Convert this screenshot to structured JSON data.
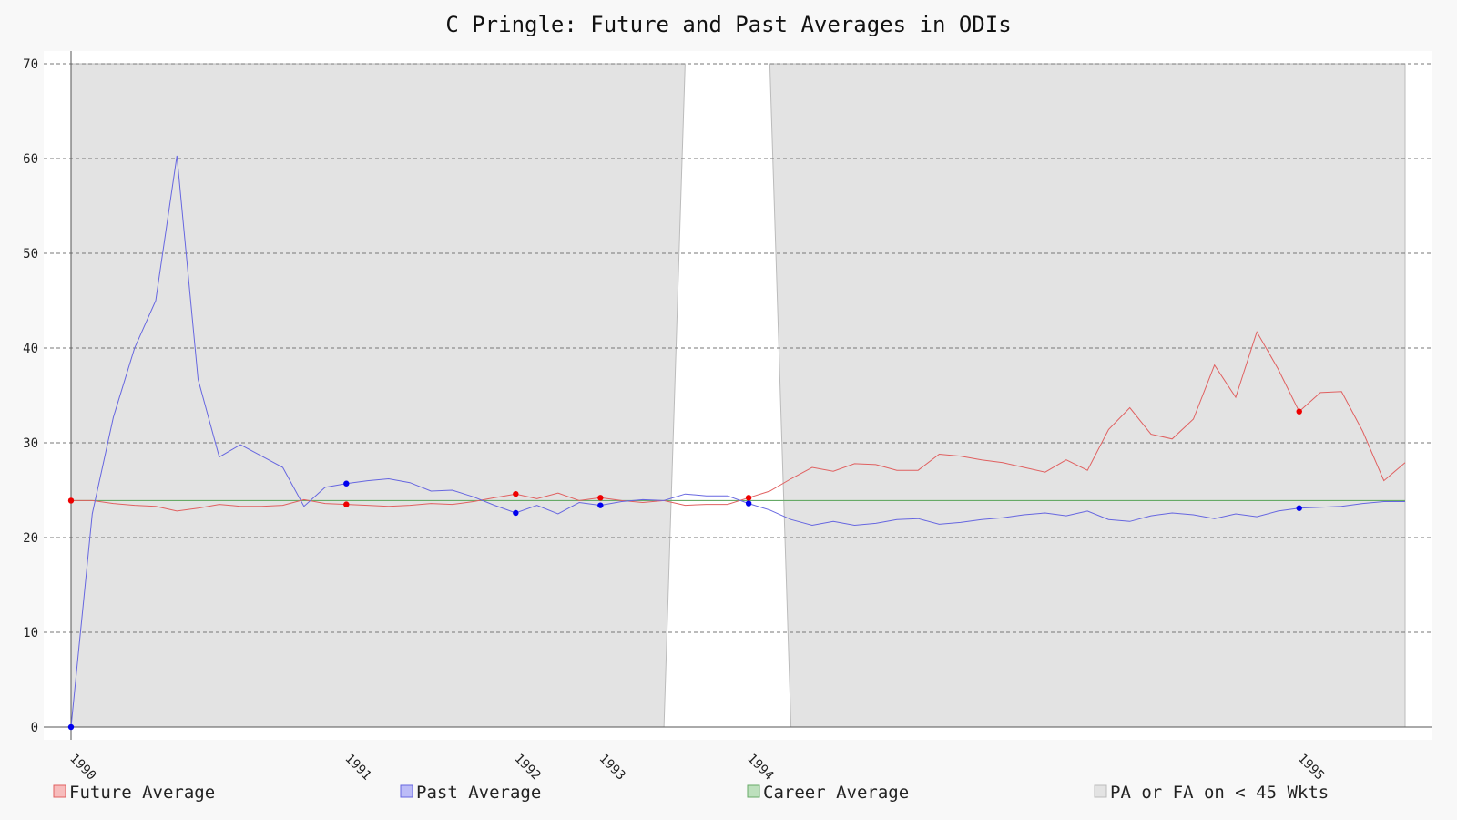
{
  "chart_data": {
    "type": "line",
    "title": "C Pringle: Future and Past Averages in ODIs",
    "xlabel": "",
    "ylabel": "",
    "ylim": [
      0,
      70
    ],
    "yticks": [
      0,
      10,
      20,
      30,
      40,
      50,
      60,
      70
    ],
    "grid": true,
    "legend_position": "bottom",
    "colors": {
      "future": "#e06060",
      "past": "#6666e0",
      "career": "#66aa66",
      "shade": "#e3e3e3",
      "plot_bg": "#ffffff",
      "marker_future": "#ee0000",
      "marker_past": "#0000ee"
    },
    "x_count": 64,
    "xticks": [
      {
        "index": 0,
        "label": "1990"
      },
      {
        "index": 13,
        "label": "1991"
      },
      {
        "index": 21,
        "label": "1992"
      },
      {
        "index": 25,
        "label": "1993"
      },
      {
        "index": 32,
        "label": "1994"
      },
      {
        "index": 58,
        "label": "1995"
      }
    ],
    "series": [
      {
        "name": "Future Average",
        "key": "future",
        "values": [
          23.9,
          23.9,
          23.6,
          23.4,
          23.3,
          22.8,
          23.1,
          23.5,
          23.3,
          23.3,
          23.4,
          24.0,
          23.6,
          23.5,
          23.4,
          23.3,
          23.4,
          23.6,
          23.5,
          23.8,
          24.2,
          24.6,
          24.1,
          24.7,
          23.9,
          24.2,
          23.9,
          23.7,
          23.9,
          23.4,
          23.5,
          23.5,
          24.2,
          24.9,
          26.2,
          27.4,
          27.0,
          27.8,
          27.7,
          27.1,
          27.1,
          28.8,
          28.6,
          28.2,
          27.9,
          27.4,
          26.9,
          28.2,
          27.1,
          31.4,
          33.7,
          30.9,
          30.4,
          32.5,
          38.2,
          34.8,
          41.7,
          37.8,
          33.3,
          35.3,
          35.4,
          31.2,
          26.0,
          27.9
        ],
        "markers": [
          0,
          13,
          21,
          25,
          32,
          58
        ]
      },
      {
        "name": "Past Average",
        "key": "past",
        "values": [
          0.0,
          22.5,
          32.7,
          40.0,
          45.0,
          60.3,
          36.7,
          28.5,
          29.8,
          28.6,
          27.4,
          23.3,
          25.3,
          25.7,
          26.0,
          26.2,
          25.8,
          24.9,
          25.0,
          24.3,
          23.4,
          22.6,
          23.4,
          22.5,
          23.7,
          23.4,
          23.8,
          24.0,
          23.9,
          24.6,
          24.4,
          24.4,
          23.6,
          22.9,
          21.9,
          21.3,
          21.7,
          21.3,
          21.5,
          21.9,
          22.0,
          21.4,
          21.6,
          21.9,
          22.1,
          22.4,
          22.6,
          22.3,
          22.8,
          21.9,
          21.7,
          22.3,
          22.6,
          22.4,
          22.0,
          22.5,
          22.2,
          22.8,
          23.1,
          23.2,
          23.3,
          23.6,
          23.8,
          23.8
        ],
        "markers": [
          0,
          13,
          21,
          25,
          32,
          58
        ]
      },
      {
        "name": "Career Average",
        "key": "career",
        "value": 23.9
      },
      {
        "name": "PA or FA on < 45 Wkts",
        "key": "shade",
        "unshaded_from": 28,
        "unshaded_to": 34
      }
    ]
  }
}
